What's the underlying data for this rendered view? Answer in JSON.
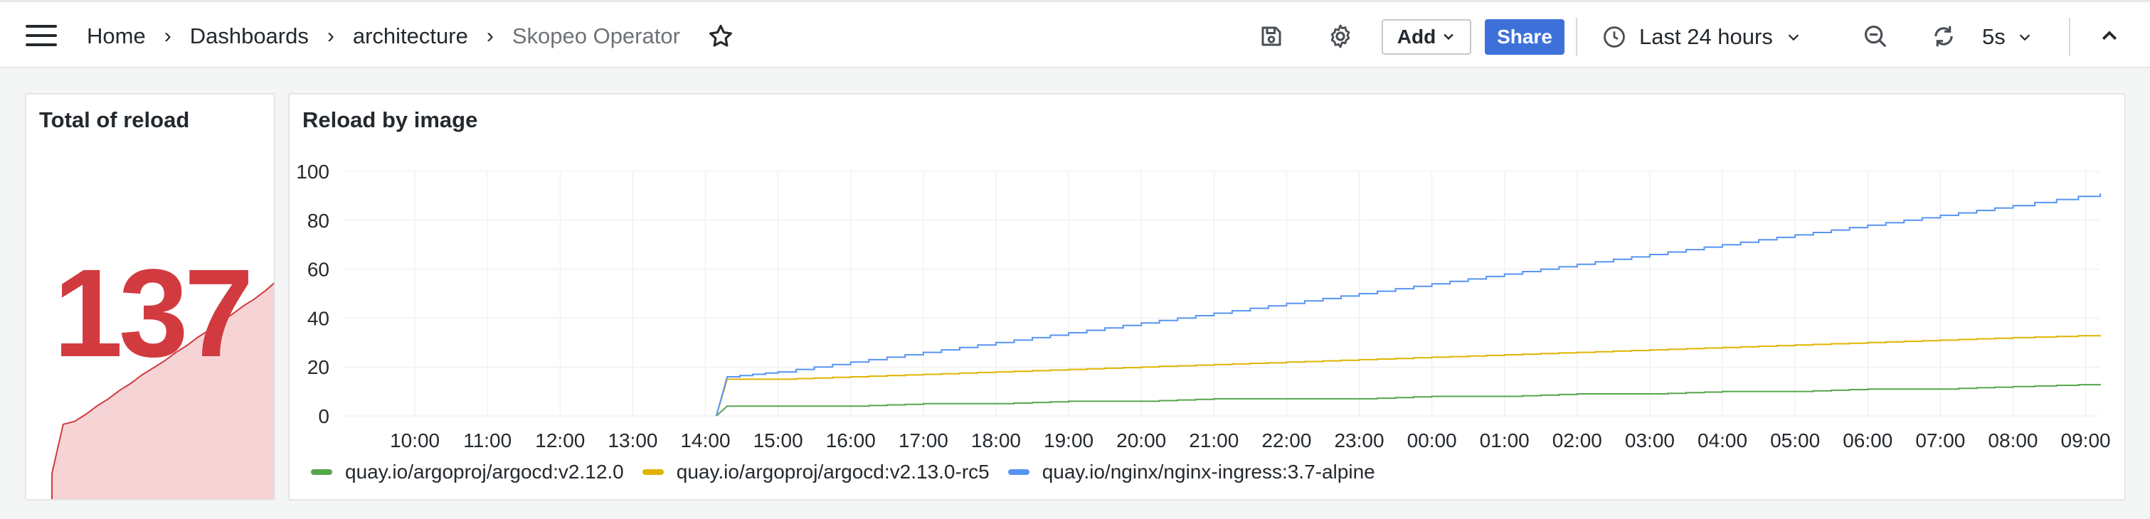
{
  "breadcrumbs": [
    "Home",
    "Dashboards",
    "architecture",
    "Skopeo Operator"
  ],
  "toolbar": {
    "add_label": "Add",
    "share_label": "Share",
    "time_range": "Last 24 hours",
    "refresh_interval": "5s"
  },
  "icons": {
    "menu": "hamburger-menu-icon",
    "star": "star-icon",
    "save": "save-icon",
    "settings": "gear-icon",
    "clock": "clock-icon",
    "zoom_out": "zoom-out-icon",
    "refresh": "refresh-icon",
    "collapse": "chevron-up-icon"
  },
  "colors": {
    "accent": "#3d71d9",
    "stat_red": "#d13b40",
    "series_green": "#56a64b",
    "series_yellow": "#e0b400",
    "series_blue": "#5794f2"
  },
  "stat_panel": {
    "title": "Total of reload",
    "value": "137"
  },
  "chart_panel": {
    "title": "Reload by image"
  },
  "chart_data": {
    "type": "line",
    "title": "Reload by image",
    "xlabel": "",
    "ylabel": "",
    "ylim": [
      0,
      100
    ],
    "yticks": [
      0,
      20,
      40,
      60,
      80,
      100
    ],
    "x_ticks": [
      "10:00",
      "11:00",
      "12:00",
      "13:00",
      "14:00",
      "15:00",
      "16:00",
      "17:00",
      "18:00",
      "19:00",
      "20:00",
      "21:00",
      "22:00",
      "23:00",
      "00:00",
      "01:00",
      "02:00",
      "03:00",
      "04:00",
      "05:00",
      "06:00",
      "07:00",
      "08:00",
      "09:00"
    ],
    "grid": true,
    "legend": "bottom",
    "x_hours": [
      14.15,
      14.3,
      15.0,
      16.0,
      17.0,
      18.0,
      19.0,
      20.0,
      21.0,
      22.0,
      23.0,
      24.0,
      25.0,
      26.0,
      27.0,
      28.0,
      29.0,
      30.0,
      31.0,
      32.0,
      33.2
    ],
    "series": [
      {
        "name": "quay.io/argoproj/argocd:v2.12.0",
        "color": "#56a64b",
        "values": [
          0,
          4,
          4,
          4,
          5,
          5,
          6,
          6,
          7,
          7,
          7,
          8,
          8,
          9,
          9,
          10,
          10,
          11,
          11,
          12,
          13
        ]
      },
      {
        "name": "quay.io/argoproj/argocd:v2.13.0-rc5",
        "color": "#e0b400",
        "values": [
          0,
          15,
          15,
          16,
          17,
          18,
          19,
          20,
          21,
          22,
          23,
          24,
          25,
          26,
          27,
          28,
          29,
          30,
          31,
          32,
          33
        ]
      },
      {
        "name": "quay.io/nginx/nginx-ingress:3.7-alpine",
        "color": "#5794f2",
        "values": [
          0,
          16,
          18,
          22,
          26,
          30,
          34,
          38,
          42,
          46,
          50,
          54,
          58,
          62,
          66,
          70,
          74,
          78,
          82,
          86,
          91
        ]
      }
    ]
  }
}
